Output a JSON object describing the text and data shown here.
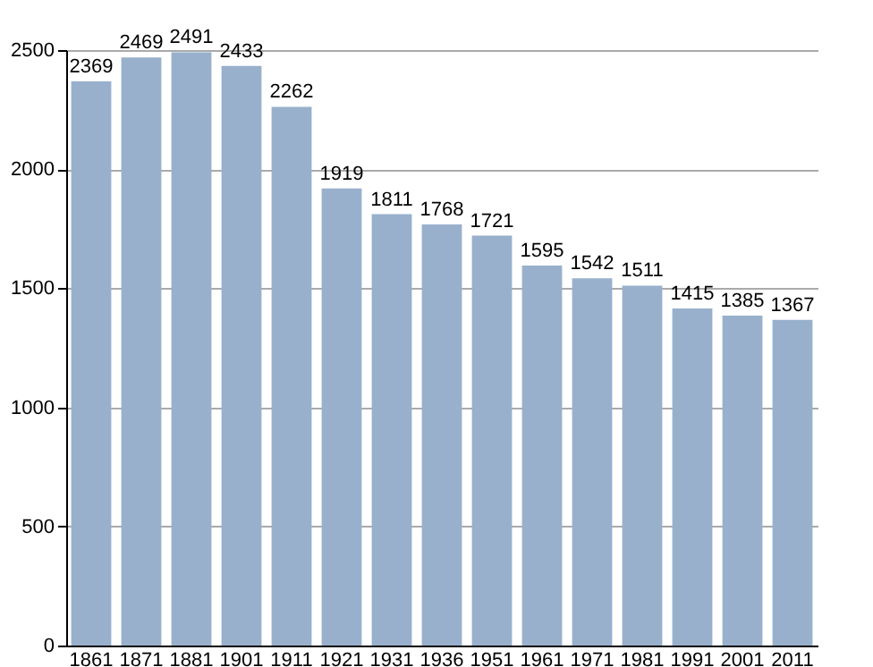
{
  "chart_data": {
    "type": "bar",
    "categories": [
      "1861",
      "1871",
      "1881",
      "1901",
      "1911",
      "1921",
      "1931",
      "1936",
      "1951",
      "1961",
      "1971",
      "1981",
      "1991",
      "2001",
      "2011"
    ],
    "values": [
      2369,
      2469,
      2491,
      2433,
      2262,
      1919,
      1811,
      1768,
      1721,
      1595,
      1542,
      1511,
      1415,
      1385,
      1367
    ],
    "color": "#98b0cc",
    "ylim": [
      0,
      2500
    ],
    "yticks": [
      0,
      500,
      1000,
      1500,
      2000,
      2500
    ],
    "grid": "y",
    "data_labels": true
  }
}
